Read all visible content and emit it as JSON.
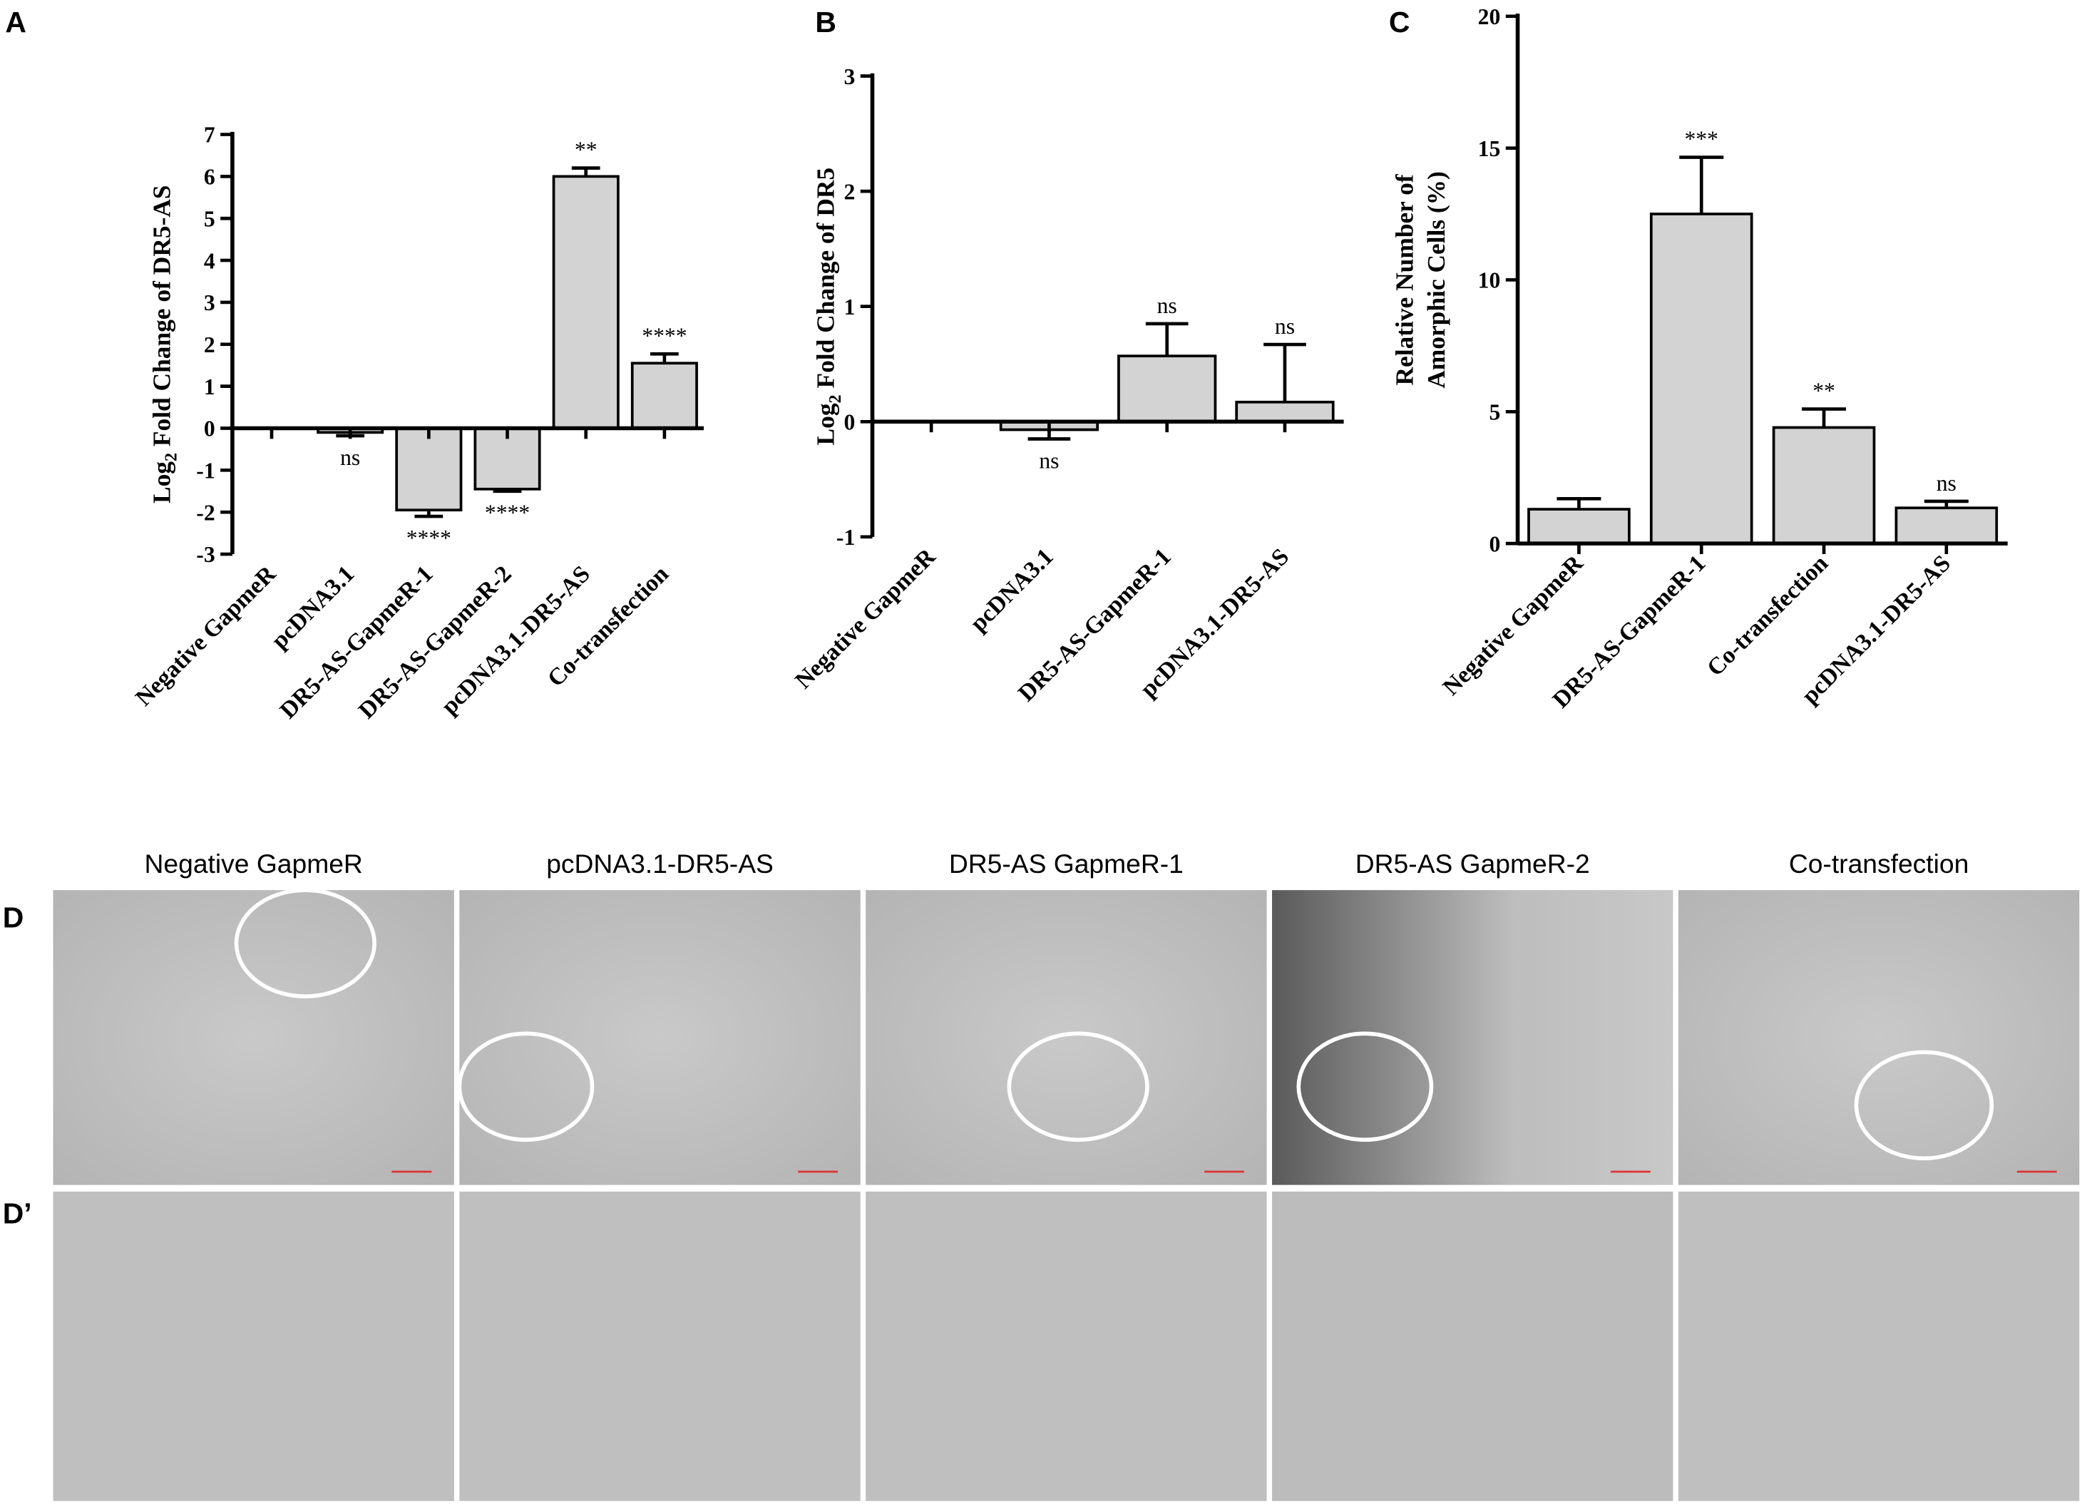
{
  "chart_data": [
    {
      "type": "bar",
      "panel_label": "A",
      "ylabel": [
        "Log",
        "2",
        " Fold Change of DR5-AS"
      ],
      "categories": [
        "Negative GapmeR",
        "pcDNA3.1",
        "DR5-AS-GapmeR-1",
        "DR5-AS-GapmeR-2",
        "pcDNA3.1-DR5-AS",
        "Co-transfection"
      ],
      "values": [
        0,
        -0.1,
        -1.95,
        -1.45,
        6.0,
        1.55
      ],
      "errors": [
        0,
        0.08,
        0.15,
        0.05,
        0.2,
        0.22
      ],
      "significance": [
        null,
        "ns",
        "****",
        "****",
        "**",
        "****"
      ],
      "color": "#d3d3d3",
      "ylim": [
        -3,
        7
      ],
      "yticks": [
        -3,
        -2,
        -1,
        0,
        1,
        2,
        3,
        4,
        5,
        6,
        7
      ]
    },
    {
      "type": "bar",
      "panel_label": "B",
      "ylabel": [
        "Log",
        "2",
        " Fold  Change of DR5"
      ],
      "categories": [
        "Negative GapmeR",
        "pcDNA3.1",
        "DR5-AS-GapmeR-1",
        "pcDNA3.1-DR5-AS"
      ],
      "values": [
        0,
        -0.07,
        0.57,
        0.17
      ],
      "errors": [
        0,
        0.08,
        0.28,
        0.5
      ],
      "significance": [
        null,
        "ns",
        "ns",
        "ns"
      ],
      "color": "#d3d3d3",
      "ylim": [
        -1,
        3
      ],
      "yticks": [
        -1,
        0,
        1,
        2,
        3
      ]
    },
    {
      "type": "bar",
      "panel_label": "C",
      "ylabel": [
        "Relative Number of",
        "Amorphic Cells (%)"
      ],
      "categories": [
        "Negative GapmeR",
        "DR5-AS-GapmeR-1",
        "Co-transfection",
        "pcDNA3.1-DR5-AS"
      ],
      "values": [
        1.3,
        12.5,
        4.4,
        1.35
      ],
      "errors": [
        0.4,
        2.15,
        0.7,
        0.25
      ],
      "significance": [
        null,
        "***",
        "**",
        "ns"
      ],
      "color": "#d3d3d3",
      "ylim": [
        0,
        20
      ],
      "yticks": [
        0,
        5,
        10,
        15,
        20
      ]
    }
  ],
  "micrographs": {
    "row_labels": [
      "D",
      "D’"
    ],
    "columns": [
      "Negative GapmeR",
      "pcDNA3.1-DR5-AS",
      "DR5-AS GapmeR-1",
      "DR5-AS GapmeR-2",
      "Co-transfection"
    ]
  }
}
